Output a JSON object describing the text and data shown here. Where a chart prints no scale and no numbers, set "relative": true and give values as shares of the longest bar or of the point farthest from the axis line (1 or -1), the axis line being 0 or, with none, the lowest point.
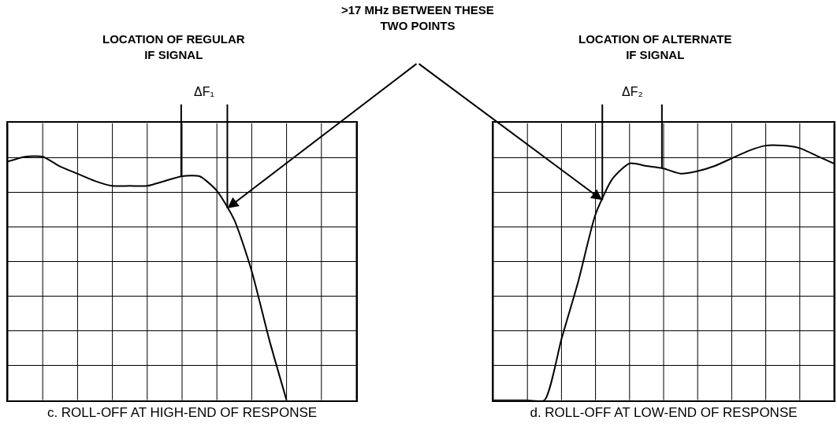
{
  "chart_data": [
    {
      "type": "line",
      "relative": true,
      "xlabel": "c. ROLL-OFF AT HIGH-END OF RESPONSE",
      "categories": [
        null,
        null,
        null,
        null,
        null,
        null,
        null,
        null,
        null,
        null,
        null,
        null,
        null,
        null,
        null,
        null,
        null,
        null,
        null,
        null,
        null
      ],
      "series": [
        {
          "color": "#000000",
          "values": [
            0.98,
            1.0,
            1.0,
            0.96,
            0.93,
            0.9,
            0.88,
            0.88,
            0.88,
            0.9,
            0.92,
            0.92,
            0.86,
            0.74,
            0.53,
            0.25,
            0,
            null,
            null,
            null,
            null
          ]
        }
      ],
      "tick_labels": false,
      "grid": true,
      "marker": "none",
      "line_style": "solid",
      "annotations": [
        "LOCATION OF REGULAR\nIF SIGNAL",
        "ΔF₁",
        ">17 MHz BETWEEN THESE\nTWO POINTS"
      ]
    },
    {
      "type": "line",
      "relative": true,
      "xlabel": "d. ROLL-OFF AT LOW-END OF RESPONSE",
      "categories": [
        null,
        null,
        null,
        null,
        null,
        null,
        null,
        null,
        null,
        null,
        null,
        null,
        null,
        null,
        null,
        null,
        null,
        null,
        null,
        null,
        null
      ],
      "series": [
        {
          "color": "#000000",
          "values": [
            0,
            0,
            0,
            0,
            0.24,
            0.47,
            0.73,
            0.87,
            0.93,
            0.92,
            0.91,
            0.89,
            0.9,
            0.92,
            0.95,
            0.98,
            1.0,
            1.0,
            0.99,
            0.96,
            0.93
          ]
        }
      ],
      "tick_labels": false,
      "grid": true,
      "marker": "none",
      "line_style": "solid",
      "annotations": [
        "LOCATION OF ALTERNATE\nIF SIGNAL",
        "ΔF₂"
      ]
    }
  ]
}
